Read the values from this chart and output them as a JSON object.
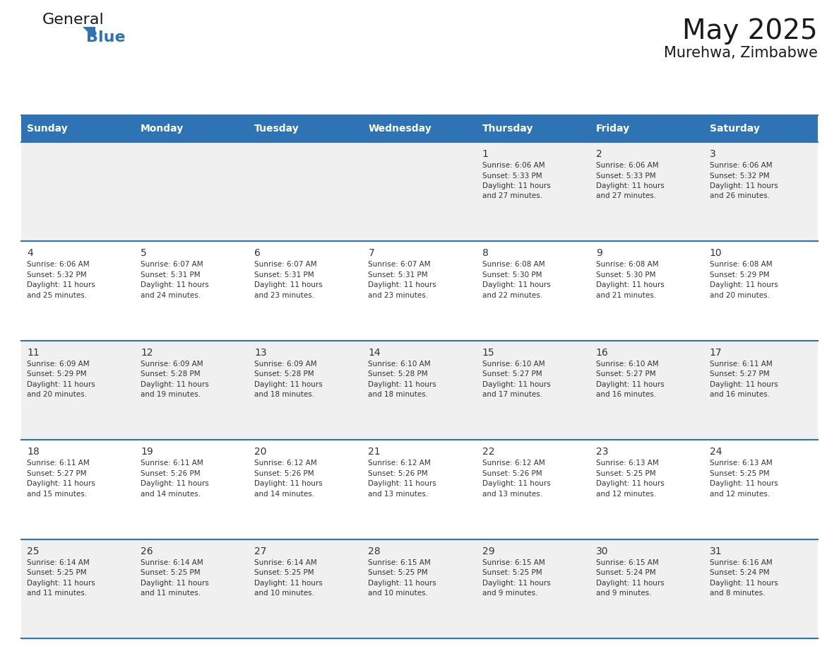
{
  "title": "May 2025",
  "subtitle": "Murehwa, Zimbabwe",
  "days_of_week": [
    "Sunday",
    "Monday",
    "Tuesday",
    "Wednesday",
    "Thursday",
    "Friday",
    "Saturday"
  ],
  "header_bg": "#2E74B5",
  "header_text": "#FFFFFF",
  "row_bg_odd": "#F0F0F0",
  "row_bg_even": "#FFFFFF",
  "cell_border": "#2E74B5",
  "text_color": "#333333",
  "calendar": [
    [
      null,
      null,
      null,
      null,
      {
        "day": "1",
        "sunrise": "6:06 AM",
        "sunset": "5:33 PM",
        "daylight_h": "11 hours",
        "daylight_m": "27 minutes"
      },
      {
        "day": "2",
        "sunrise": "6:06 AM",
        "sunset": "5:33 PM",
        "daylight_h": "11 hours",
        "daylight_m": "27 minutes"
      },
      {
        "day": "3",
        "sunrise": "6:06 AM",
        "sunset": "5:32 PM",
        "daylight_h": "11 hours",
        "daylight_m": "26 minutes"
      }
    ],
    [
      {
        "day": "4",
        "sunrise": "6:06 AM",
        "sunset": "5:32 PM",
        "daylight_h": "11 hours",
        "daylight_m": "25 minutes"
      },
      {
        "day": "5",
        "sunrise": "6:07 AM",
        "sunset": "5:31 PM",
        "daylight_h": "11 hours",
        "daylight_m": "24 minutes"
      },
      {
        "day": "6",
        "sunrise": "6:07 AM",
        "sunset": "5:31 PM",
        "daylight_h": "11 hours",
        "daylight_m": "23 minutes"
      },
      {
        "day": "7",
        "sunrise": "6:07 AM",
        "sunset": "5:31 PM",
        "daylight_h": "11 hours",
        "daylight_m": "23 minutes"
      },
      {
        "day": "8",
        "sunrise": "6:08 AM",
        "sunset": "5:30 PM",
        "daylight_h": "11 hours",
        "daylight_m": "22 minutes"
      },
      {
        "day": "9",
        "sunrise": "6:08 AM",
        "sunset": "5:30 PM",
        "daylight_h": "11 hours",
        "daylight_m": "21 minutes"
      },
      {
        "day": "10",
        "sunrise": "6:08 AM",
        "sunset": "5:29 PM",
        "daylight_h": "11 hours",
        "daylight_m": "20 minutes"
      }
    ],
    [
      {
        "day": "11",
        "sunrise": "6:09 AM",
        "sunset": "5:29 PM",
        "daylight_h": "11 hours",
        "daylight_m": "20 minutes"
      },
      {
        "day": "12",
        "sunrise": "6:09 AM",
        "sunset": "5:28 PM",
        "daylight_h": "11 hours",
        "daylight_m": "19 minutes"
      },
      {
        "day": "13",
        "sunrise": "6:09 AM",
        "sunset": "5:28 PM",
        "daylight_h": "11 hours",
        "daylight_m": "18 minutes"
      },
      {
        "day": "14",
        "sunrise": "6:10 AM",
        "sunset": "5:28 PM",
        "daylight_h": "11 hours",
        "daylight_m": "18 minutes"
      },
      {
        "day": "15",
        "sunrise": "6:10 AM",
        "sunset": "5:27 PM",
        "daylight_h": "11 hours",
        "daylight_m": "17 minutes"
      },
      {
        "day": "16",
        "sunrise": "6:10 AM",
        "sunset": "5:27 PM",
        "daylight_h": "11 hours",
        "daylight_m": "16 minutes"
      },
      {
        "day": "17",
        "sunrise": "6:11 AM",
        "sunset": "5:27 PM",
        "daylight_h": "11 hours",
        "daylight_m": "16 minutes"
      }
    ],
    [
      {
        "day": "18",
        "sunrise": "6:11 AM",
        "sunset": "5:27 PM",
        "daylight_h": "11 hours",
        "daylight_m": "15 minutes"
      },
      {
        "day": "19",
        "sunrise": "6:11 AM",
        "sunset": "5:26 PM",
        "daylight_h": "11 hours",
        "daylight_m": "14 minutes"
      },
      {
        "day": "20",
        "sunrise": "6:12 AM",
        "sunset": "5:26 PM",
        "daylight_h": "11 hours",
        "daylight_m": "14 minutes"
      },
      {
        "day": "21",
        "sunrise": "6:12 AM",
        "sunset": "5:26 PM",
        "daylight_h": "11 hours",
        "daylight_m": "13 minutes"
      },
      {
        "day": "22",
        "sunrise": "6:12 AM",
        "sunset": "5:26 PM",
        "daylight_h": "11 hours",
        "daylight_m": "13 minutes"
      },
      {
        "day": "23",
        "sunrise": "6:13 AM",
        "sunset": "5:25 PM",
        "daylight_h": "11 hours",
        "daylight_m": "12 minutes"
      },
      {
        "day": "24",
        "sunrise": "6:13 AM",
        "sunset": "5:25 PM",
        "daylight_h": "11 hours",
        "daylight_m": "12 minutes"
      }
    ],
    [
      {
        "day": "25",
        "sunrise": "6:14 AM",
        "sunset": "5:25 PM",
        "daylight_h": "11 hours",
        "daylight_m": "11 minutes"
      },
      {
        "day": "26",
        "sunrise": "6:14 AM",
        "sunset": "5:25 PM",
        "daylight_h": "11 hours",
        "daylight_m": "11 minutes"
      },
      {
        "day": "27",
        "sunrise": "6:14 AM",
        "sunset": "5:25 PM",
        "daylight_h": "11 hours",
        "daylight_m": "10 minutes"
      },
      {
        "day": "28",
        "sunrise": "6:15 AM",
        "sunset": "5:25 PM",
        "daylight_h": "11 hours",
        "daylight_m": "10 minutes"
      },
      {
        "day": "29",
        "sunrise": "6:15 AM",
        "sunset": "5:25 PM",
        "daylight_h": "11 hours",
        "daylight_m": "9 minutes"
      },
      {
        "day": "30",
        "sunrise": "6:15 AM",
        "sunset": "5:24 PM",
        "daylight_h": "11 hours",
        "daylight_m": "9 minutes"
      },
      {
        "day": "31",
        "sunrise": "6:16 AM",
        "sunset": "5:24 PM",
        "daylight_h": "11 hours",
        "daylight_m": "8 minutes"
      }
    ]
  ],
  "logo_general_color": "#1a1a1a",
  "logo_blue_color": "#2E74B5",
  "title_fontsize": 28,
  "subtitle_fontsize": 15,
  "header_fontsize": 10,
  "day_num_fontsize": 10,
  "cell_text_fontsize": 7.5
}
